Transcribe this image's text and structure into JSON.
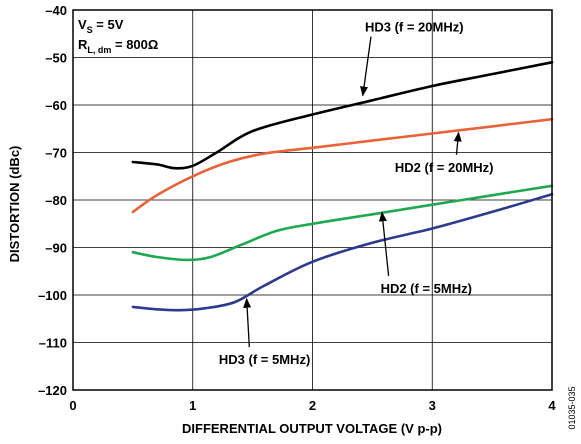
{
  "chart_data": {
    "type": "line",
    "title": "",
    "xlabel": "DIFFERENTIAL OUTPUT VOLTAGE (V p-p)",
    "ylabel": "DISTORTION (dBc)",
    "xlim": [
      0,
      4
    ],
    "ylim": [
      -120,
      -40
    ],
    "x_ticks": [
      "0",
      "1",
      "2",
      "3",
      "4"
    ],
    "y_ticks": [
      "–40",
      "–50",
      "–60",
      "–70",
      "–80",
      "–90",
      "–100",
      "–110",
      "–120"
    ],
    "grid": true,
    "conditions": {
      "line1_main": "V",
      "line1_sub": "S",
      "line1_rest": " = 5V",
      "line2_main": "R",
      "line2_sub": "L, dm",
      "line2_rest": " = 800Ω"
    },
    "figure_id": "01035-035",
    "series": [
      {
        "color": "#000000",
        "x": [
          0.5,
          0.7,
          0.85,
          1.0,
          1.2,
          1.5,
          2.0,
          2.5,
          3.0,
          3.5,
          4.0
        ],
        "y": [
          -72,
          -72.5,
          -73.3,
          -72.8,
          -70,
          -65.5,
          -62,
          -59,
          -56,
          -53.5,
          -51
        ]
      },
      {
        "color": "#E8623A",
        "x": [
          0.5,
          0.7,
          1.0,
          1.3,
          1.6,
          2.0,
          2.5,
          3.0,
          3.5,
          4.0
        ],
        "y": [
          -82.5,
          -79,
          -75,
          -72,
          -70.2,
          -69,
          -67.5,
          -66,
          -64.5,
          -63
        ]
      },
      {
        "color": "#1FA84F",
        "x": [
          0.5,
          0.7,
          0.95,
          1.15,
          1.4,
          1.7,
          2.0,
          2.5,
          3.0,
          3.5,
          4.0
        ],
        "y": [
          -91,
          -92,
          -92.6,
          -92,
          -89.5,
          -86.5,
          -85,
          -83,
          -81,
          -79,
          -77
        ]
      },
      {
        "color": "#2E3A8C",
        "x": [
          0.5,
          0.7,
          0.9,
          1.1,
          1.35,
          1.6,
          2.0,
          2.5,
          3.0,
          3.5,
          4.0
        ],
        "y": [
          -102.5,
          -103,
          -103.2,
          -102.8,
          -101.5,
          -98,
          -93,
          -89,
          -86,
          -82.5,
          -78.8
        ]
      }
    ],
    "annotations": [
      {
        "text": "HD3 (f = 20MHz)",
        "x": 2.85,
        "y": -43.5,
        "ax": 2.42,
        "ay": -58
      },
      {
        "text": "HD2 (f = 20MHz)",
        "x": 3.1,
        "y": -73,
        "ax": 3.22,
        "ay": -65.8
      },
      {
        "text": "HD2 (f = 5MHz)",
        "x": 2.95,
        "y": -98.5,
        "ax": 2.58,
        "ay": -82.6
      },
      {
        "text": "HD3 (f = 5MHz)",
        "x": 1.6,
        "y": -113.5,
        "ax": 1.45,
        "ay": -100.8
      }
    ]
  }
}
